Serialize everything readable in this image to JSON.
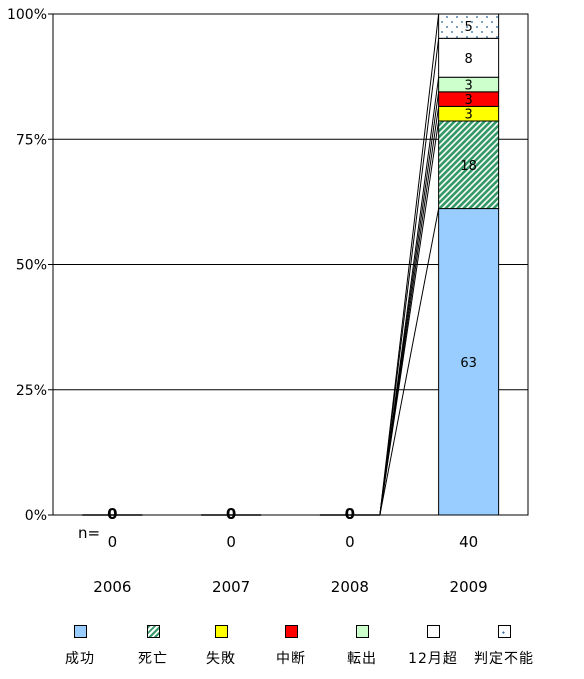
{
  "chart_data": {
    "type": "bar",
    "stacked": "percent",
    "categories": [
      "2006",
      "2007",
      "2008",
      "2009"
    ],
    "n_label": "n=",
    "n_values": [
      "0",
      "0",
      "0",
      "40"
    ],
    "yticks": [
      "0%",
      "25%",
      "50%",
      "75%",
      "100%"
    ],
    "ylim": [
      0,
      100
    ],
    "grid": true,
    "legend_position": "bottom",
    "series": [
      {
        "name": "成功",
        "values": [
          0,
          0,
          0,
          63
        ],
        "color": "#99CCFF",
        "pattern": "solid"
      },
      {
        "name": "死亡",
        "values": [
          0,
          0,
          0,
          18
        ],
        "color": "#339966",
        "pattern": "diagonal"
      },
      {
        "name": "失敗",
        "values": [
          0,
          0,
          0,
          3
        ],
        "color": "#FFFF00",
        "pattern": "solid"
      },
      {
        "name": "中断",
        "values": [
          0,
          0,
          0,
          3
        ],
        "color": "#FF0000",
        "pattern": "solid"
      },
      {
        "name": "転出",
        "values": [
          0,
          0,
          0,
          3
        ],
        "color": "#CCFFCC",
        "pattern": "solid"
      },
      {
        "name": "12月超",
        "values": [
          0,
          0,
          0,
          8
        ],
        "color": "#FFFFFF",
        "pattern": "solid"
      },
      {
        "name": "判定不能",
        "values": [
          0,
          0,
          0,
          5
        ],
        "color": "#FFFFFF",
        "pattern": "dots"
      }
    ],
    "zero_labels": [
      "0",
      "0",
      "0"
    ]
  }
}
